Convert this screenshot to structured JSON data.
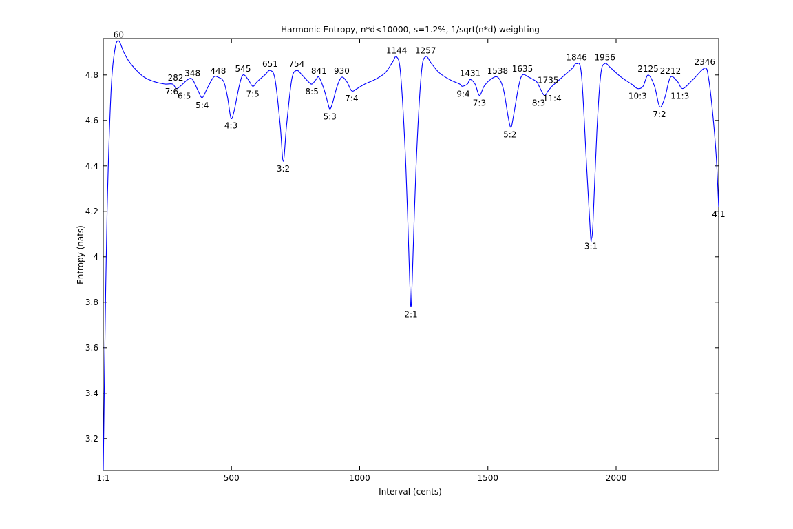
{
  "chart_data": {
    "type": "line",
    "title": "Harmonic Entropy, n*d<10000, s=1.2%, 1/sqrt(n*d) weighting",
    "xlabel": "Interval (cents)",
    "ylabel": "Entropy (nats)",
    "xlim": [
      0,
      2400
    ],
    "ylim": [
      3.06,
      4.96
    ],
    "grid": false,
    "line_color": "#0000ff",
    "x_ticks": [
      0,
      500,
      1000,
      1500,
      2000
    ],
    "x_tick_labels": [
      "1:1",
      "500",
      "1000",
      "1500",
      "2000"
    ],
    "y_ticks": [
      3.2,
      3.4,
      3.6,
      3.8,
      4.0,
      4.2,
      4.4,
      4.6,
      4.8
    ],
    "y_tick_labels": [
      "3.2",
      "3.4",
      "3.6",
      "3.8",
      "4",
      "4.2",
      "4.4",
      "4.6",
      "4.8"
    ],
    "series": [
      {
        "x": [
          0,
          5,
          15,
          30,
          45,
          60,
          80,
          100,
          130,
          160,
          200,
          240,
          270,
          285,
          300,
          330,
          348,
          370,
          386,
          405,
          430,
          448,
          470,
          485,
          498,
          510,
          530,
          545,
          565,
          583,
          600,
          630,
          651,
          670,
          690,
          702,
          715,
          735,
          754,
          775,
          800,
          814,
          830,
          841,
          860,
          875,
          884,
          895,
          912,
          930,
          950,
          969,
          990,
          1020,
          1060,
          1100,
          1130,
          1144,
          1160,
          1180,
          1195,
          1200,
          1205,
          1220,
          1240,
          1257,
          1280,
          1310,
          1350,
          1390,
          1400,
          1420,
          1431,
          1450,
          1467,
          1485,
          1510,
          1538,
          1560,
          1580,
          1590,
          1600,
          1620,
          1635,
          1660,
          1690,
          1700,
          1720,
          1735,
          1750,
          1770,
          1800,
          1830,
          1846,
          1865,
          1885,
          1900,
          1904,
          1910,
          1925,
          1940,
          1956,
          1980,
          2020,
          2060,
          2084,
          2105,
          2125,
          2150,
          2170,
          2190,
          2212,
          2240,
          2260,
          2300,
          2346,
          2360,
          2375,
          2390,
          2400
        ],
        "y": [
          3.06,
          3.5,
          4.2,
          4.72,
          4.91,
          4.95,
          4.9,
          4.86,
          4.82,
          4.79,
          4.77,
          4.76,
          4.76,
          4.74,
          4.75,
          4.78,
          4.78,
          4.73,
          4.7,
          4.74,
          4.79,
          4.79,
          4.77,
          4.7,
          4.61,
          4.64,
          4.75,
          4.8,
          4.78,
          4.75,
          4.77,
          4.8,
          4.82,
          4.78,
          4.58,
          4.42,
          4.58,
          4.78,
          4.82,
          4.8,
          4.77,
          4.76,
          4.78,
          4.79,
          4.74,
          4.68,
          4.65,
          4.68,
          4.75,
          4.79,
          4.77,
          4.73,
          4.74,
          4.76,
          4.78,
          4.81,
          4.86,
          4.88,
          4.8,
          4.4,
          3.9,
          3.78,
          3.9,
          4.4,
          4.8,
          4.88,
          4.85,
          4.81,
          4.78,
          4.76,
          4.75,
          4.76,
          4.78,
          4.76,
          4.71,
          4.75,
          4.78,
          4.79,
          4.74,
          4.61,
          4.57,
          4.62,
          4.75,
          4.8,
          4.79,
          4.77,
          4.75,
          4.71,
          4.73,
          4.75,
          4.77,
          4.8,
          4.83,
          4.85,
          4.8,
          4.4,
          4.1,
          4.08,
          4.15,
          4.55,
          4.8,
          4.85,
          4.83,
          4.79,
          4.76,
          4.74,
          4.75,
          4.8,
          4.75,
          4.66,
          4.7,
          4.79,
          4.77,
          4.74,
          4.78,
          4.83,
          4.79,
          4.65,
          4.45,
          4.22
        ]
      }
    ],
    "annotations": [
      {
        "text": "60",
        "x": 60,
        "y": 4.95,
        "pos": "above"
      },
      {
        "text": "282",
        "x": 282,
        "y": 4.76,
        "pos": "above"
      },
      {
        "text": "348",
        "x": 348,
        "y": 4.78,
        "pos": "above"
      },
      {
        "text": "448",
        "x": 448,
        "y": 4.79,
        "pos": "above"
      },
      {
        "text": "545",
        "x": 545,
        "y": 4.8,
        "pos": "above"
      },
      {
        "text": "651",
        "x": 651,
        "y": 4.82,
        "pos": "above"
      },
      {
        "text": "754",
        "x": 754,
        "y": 4.82,
        "pos": "above"
      },
      {
        "text": "841",
        "x": 841,
        "y": 4.79,
        "pos": "above"
      },
      {
        "text": "930",
        "x": 930,
        "y": 4.79,
        "pos": "above"
      },
      {
        "text": "1144",
        "x": 1144,
        "y": 4.88,
        "pos": "above"
      },
      {
        "text": "1257",
        "x": 1257,
        "y": 4.88,
        "pos": "above"
      },
      {
        "text": "1431",
        "x": 1431,
        "y": 4.78,
        "pos": "above"
      },
      {
        "text": "1538",
        "x": 1538,
        "y": 4.79,
        "pos": "above"
      },
      {
        "text": "1635",
        "x": 1635,
        "y": 4.8,
        "pos": "above"
      },
      {
        "text": "1735",
        "x": 1735,
        "y": 4.75,
        "pos": "above"
      },
      {
        "text": "1846",
        "x": 1846,
        "y": 4.85,
        "pos": "above"
      },
      {
        "text": "1956",
        "x": 1956,
        "y": 4.85,
        "pos": "above"
      },
      {
        "text": "2125",
        "x": 2125,
        "y": 4.8,
        "pos": "above"
      },
      {
        "text": "2212",
        "x": 2212,
        "y": 4.79,
        "pos": "above"
      },
      {
        "text": "2346",
        "x": 2346,
        "y": 4.83,
        "pos": "above"
      },
      {
        "text": "7:6",
        "x": 267,
        "y": 4.76,
        "pos": "below"
      },
      {
        "text": "6:5",
        "x": 316,
        "y": 4.74,
        "pos": "below"
      },
      {
        "text": "5:4",
        "x": 386,
        "y": 4.7,
        "pos": "below"
      },
      {
        "text": "4:3",
        "x": 498,
        "y": 4.61,
        "pos": "below"
      },
      {
        "text": "7:5",
        "x": 583,
        "y": 4.75,
        "pos": "below"
      },
      {
        "text": "3:2",
        "x": 702,
        "y": 4.42,
        "pos": "below"
      },
      {
        "text": "8:5",
        "x": 814,
        "y": 4.76,
        "pos": "below"
      },
      {
        "text": "5:3",
        "x": 884,
        "y": 4.65,
        "pos": "below"
      },
      {
        "text": "7:4",
        "x": 969,
        "y": 4.73,
        "pos": "below"
      },
      {
        "text": "2:1",
        "x": 1200,
        "y": 3.78,
        "pos": "below"
      },
      {
        "text": "9:4",
        "x": 1404,
        "y": 4.75,
        "pos": "below"
      },
      {
        "text": "7:3",
        "x": 1467,
        "y": 4.71,
        "pos": "below"
      },
      {
        "text": "5:2",
        "x": 1586,
        "y": 4.57,
        "pos": "below"
      },
      {
        "text": "8:3",
        "x": 1698,
        "y": 4.71,
        "pos": "below"
      },
      {
        "text": "11:4",
        "x": 1751,
        "y": 4.73,
        "pos": "below"
      },
      {
        "text": "3:1",
        "x": 1902,
        "y": 4.08,
        "pos": "below"
      },
      {
        "text": "10:3",
        "x": 2084,
        "y": 4.74,
        "pos": "below"
      },
      {
        "text": "7:2",
        "x": 2169,
        "y": 4.66,
        "pos": "below"
      },
      {
        "text": "11:3",
        "x": 2249,
        "y": 4.74,
        "pos": "below"
      },
      {
        "text": "4:1",
        "x": 2400,
        "y": 4.22,
        "pos": "below"
      }
    ]
  }
}
